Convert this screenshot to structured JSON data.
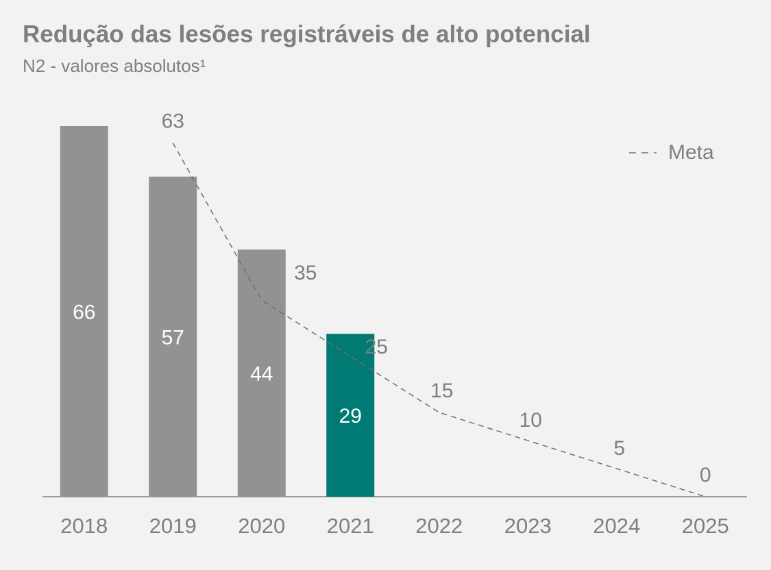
{
  "chart_data": {
    "type": "bar",
    "title": "Redução das lesões registráveis de alto potencial",
    "subtitle": "N2 - valores absolutos¹",
    "categories": [
      "2018",
      "2019",
      "2020",
      "2021",
      "2022",
      "2023",
      "2024",
      "2025"
    ],
    "series": [
      {
        "type": "bar",
        "colors": [
          "#929292",
          "#929292",
          "#929292",
          "#007a73",
          null,
          null,
          null,
          null
        ],
        "values": [
          66,
          57,
          44,
          29,
          null,
          null,
          null,
          null
        ]
      },
      {
        "type": "line",
        "name": "Meta",
        "color": "#6f6f6f",
        "dashed": true,
        "values": [
          null,
          63,
          35,
          25,
          15,
          10,
          5,
          0
        ]
      }
    ],
    "legend": "top-right"
  }
}
